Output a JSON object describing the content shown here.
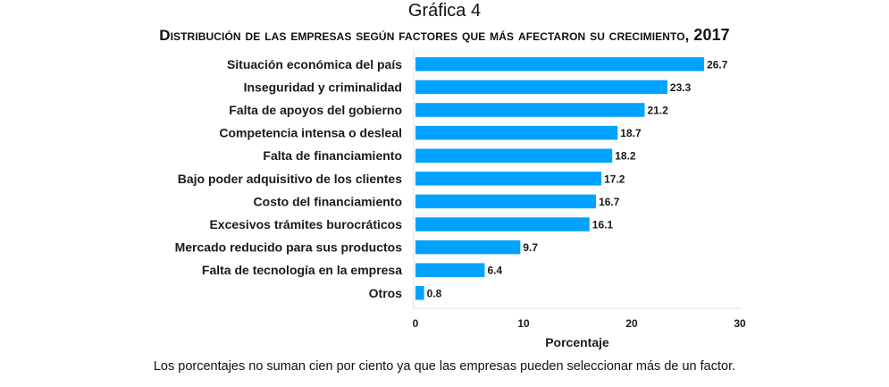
{
  "chart_data": {
    "type": "bar",
    "orientation": "horizontal",
    "supertitle": "Gráfica 4",
    "title": "Distribución de las empresas según factores que más afectaron su crecimiento,",
    "title_year": "2017",
    "categories": [
      "Situación económica del país",
      "Inseguridad y criminalidad",
      "Falta de apoyos del gobierno",
      "Competencia intensa o desleal",
      "Falta de financiamiento",
      "Bajo poder adquisitivo de los clientes",
      "Costo del financiamiento",
      "Excesivos trámites burocráticos",
      "Mercado reducido para sus productos",
      "Falta de tecnología en la empresa",
      "Otros"
    ],
    "values": [
      26.7,
      23.3,
      21.2,
      18.7,
      18.2,
      17.2,
      16.7,
      16.1,
      9.7,
      6.4,
      0.8
    ],
    "value_labels": [
      "26.7",
      "23.3",
      "21.2",
      "18.7",
      "18.2",
      "17.2",
      "16.7",
      "16.1",
      "9.7",
      "6.4",
      "0.8"
    ],
    "xlabel": "Porcentaje",
    "ylabel": "",
    "xlim": [
      0,
      30
    ],
    "xticks": [
      0,
      10,
      20,
      30
    ],
    "xtick_labels": [
      "0",
      "10",
      "20",
      "30"
    ],
    "grid": false,
    "legend": "none",
    "bar_color": "#00a2ff",
    "axis_color": "#e6e6e6",
    "footnote": "Los porcentajes no suman cien por ciento ya que las empresas pueden seleccionar más de un factor."
  }
}
